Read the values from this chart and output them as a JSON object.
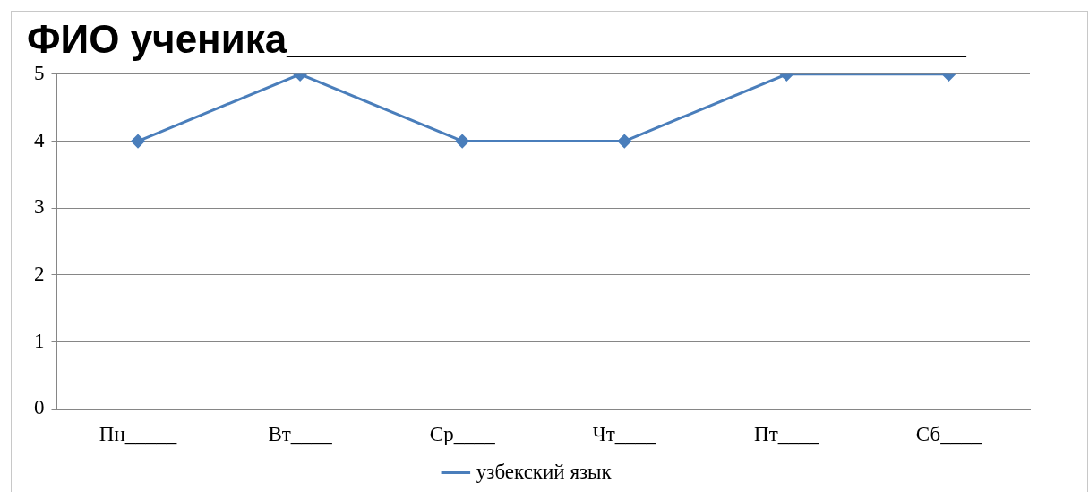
{
  "chart_data": {
    "type": "line",
    "title": "ФИО ученика_______________________________",
    "categories": [
      "Пн_____",
      "Вт____",
      "Ср____",
      "Чт____",
      "Пт____",
      "Сб____"
    ],
    "series": [
      {
        "name": "узбекский язык",
        "color": "#4a7ebb",
        "values": [
          4,
          5,
          4,
          4,
          5,
          5
        ]
      }
    ],
    "ylim": [
      0,
      5
    ],
    "yticks": [
      0,
      1,
      2,
      3,
      4,
      5
    ],
    "grid": "y",
    "legend": "bottom",
    "marker": "diamond",
    "line_style": "solid"
  }
}
